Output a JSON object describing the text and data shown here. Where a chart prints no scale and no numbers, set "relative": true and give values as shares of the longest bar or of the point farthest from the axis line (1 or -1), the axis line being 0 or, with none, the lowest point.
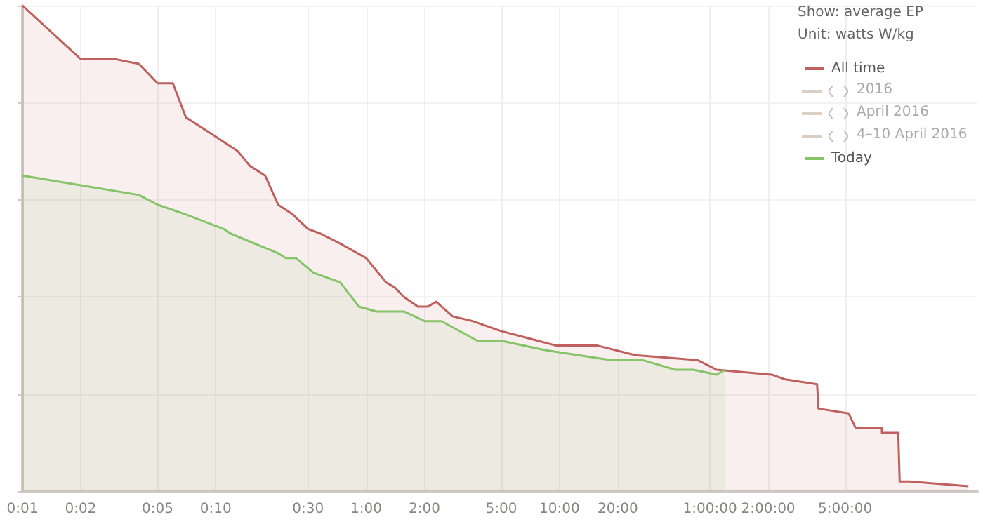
{
  "chart_data": {
    "type": "area",
    "relative": true,
    "annotations": [
      "Show: average EP",
      "Unit: watts W/kg",
      "2016",
      "April 2016",
      "4–10 April 2016"
    ],
    "xlim": [
      1,
      87000
    ],
    "xticks": [
      {
        "value": 1,
        "label": "0:01"
      },
      {
        "value": 2,
        "label": "0:02"
      },
      {
        "value": 5,
        "label": "0:05"
      },
      {
        "value": 10,
        "label": "0:10"
      },
      {
        "value": 30,
        "label": "0:30"
      },
      {
        "value": 60,
        "label": "1:00"
      },
      {
        "value": 120,
        "label": "2:00"
      },
      {
        "value": 300,
        "label": "5:00"
      },
      {
        "value": 600,
        "label": "10:00"
      },
      {
        "value": 1200,
        "label": "20:00"
      },
      {
        "value": 3600,
        "label": "1:00:00"
      },
      {
        "value": 7200,
        "label": "2:00:00"
      },
      {
        "value": 18000,
        "label": "5:00:00"
      }
    ],
    "log": "x",
    "grid": true,
    "legend": "top right",
    "marker": "none",
    "series": [
      {
        "name": "All time",
        "color": "#c0605e",
        "x": [
          1,
          2,
          3,
          4,
          5,
          6,
          7,
          10,
          13,
          15,
          18,
          21,
          25,
          30,
          35,
          44,
          60,
          76,
          84,
          94,
          111,
          125,
          138,
          168,
          214,
          297,
          573,
          936,
          1482,
          3098,
          3896,
          7505,
          8843,
          12893,
          13106,
          18793,
          20400,
          27860,
          27900,
          33900,
          34470,
          38660,
          78200
        ],
        "values": [
          1,
          0.89,
          0.89,
          0.88,
          0.84,
          0.84,
          0.77,
          0.73,
          0.7,
          0.67,
          0.65,
          0.59,
          0.57,
          0.54,
          0.53,
          0.51,
          0.48,
          0.43,
          0.42,
          0.4,
          0.38,
          0.38,
          0.39,
          0.36,
          0.35,
          0.33,
          0.3,
          0.3,
          0.28,
          0.27,
          0.25,
          0.24,
          0.23,
          0.22,
          0.17,
          0.16,
          0.13,
          0.13,
          0.12,
          0.12,
          0.02,
          0.02,
          0.01
        ]
      },
      {
        "name": "Today",
        "color": "#86c46a",
        "x": [
          1,
          2,
          4,
          5,
          7,
          11,
          12,
          21,
          23,
          26,
          32,
          44,
          55,
          68,
          94,
          121,
          147,
          225,
          297,
          511,
          1103,
          1608,
          2384,
          2950,
          3896,
          4300
        ],
        "values": [
          0.65,
          0.63,
          0.61,
          0.59,
          0.57,
          0.54,
          0.53,
          0.49,
          0.48,
          0.48,
          0.45,
          0.43,
          0.38,
          0.37,
          0.37,
          0.35,
          0.35,
          0.31,
          0.31,
          0.29,
          0.27,
          0.27,
          0.25,
          0.25,
          0.24,
          0.25
        ]
      }
    ]
  }
}
